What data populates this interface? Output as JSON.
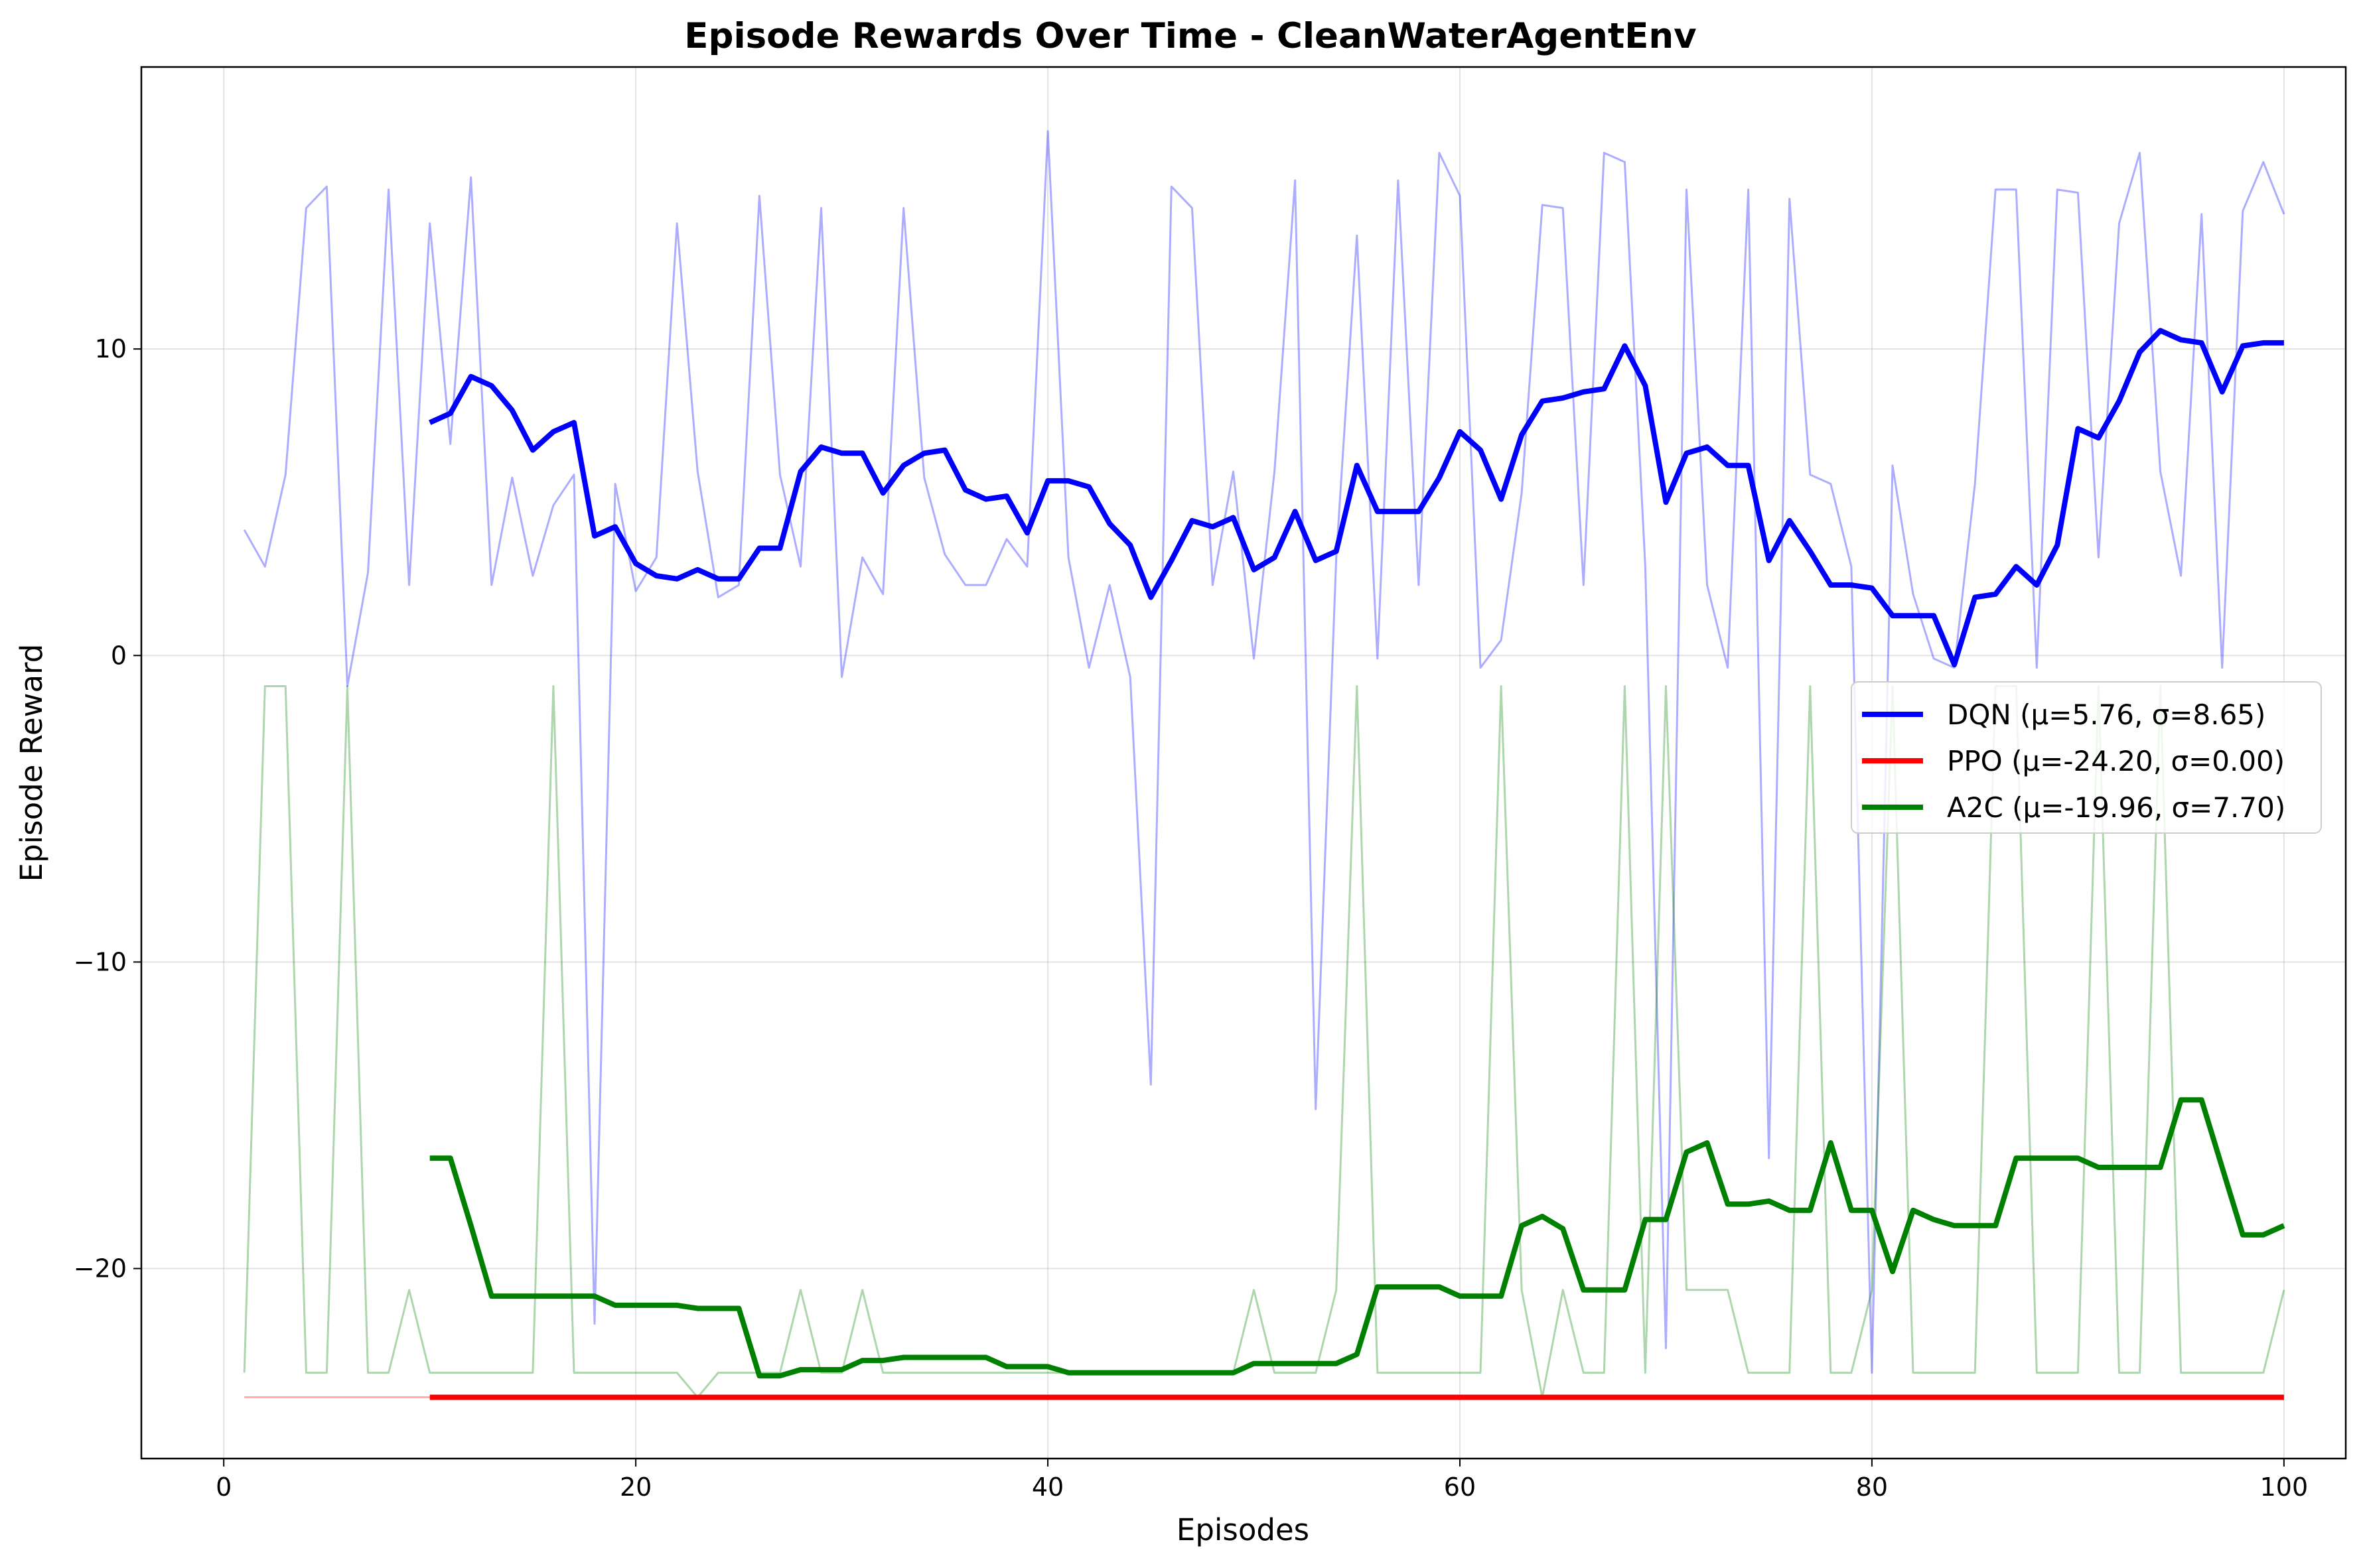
{
  "chart_data": {
    "type": "line",
    "title": "Episode Rewards Over Time - CleanWaterAgentEnv",
    "xlabel": "Episodes",
    "ylabel": "Episode Reward",
    "xlim": [
      -4,
      103
    ],
    "ylim": [
      -26.2,
      19.2
    ],
    "xticks": [
      0,
      20,
      40,
      60,
      80,
      100
    ],
    "yticks": [
      -20,
      -10,
      0,
      10
    ],
    "xtick_labels": [
      "0",
      "20",
      "40",
      "60",
      "80",
      "100"
    ],
    "ytick_labels": [
      "−20",
      "−10",
      "0",
      "10"
    ],
    "grid": true,
    "legend_position": "center-right",
    "legend": [
      "DQN (μ=5.76, σ=8.65)",
      "PPO (μ=-24.20, σ=0.00)",
      "A2C (μ=-19.96, σ=7.70)"
    ],
    "series": [
      {
        "name": "DQN (μ=5.76, σ=8.65)",
        "color": "#0000ff",
        "raw": [
          4.1,
          2.9,
          5.9,
          14.6,
          15.3,
          -1.0,
          2.7,
          15.2,
          2.3,
          14.1,
          6.9,
          15.6,
          2.3,
          5.8,
          2.6,
          4.9,
          5.9,
          -21.8,
          5.6,
          2.1,
          3.2,
          14.1,
          6.0,
          1.9,
          2.3,
          15.0,
          5.9,
          2.9,
          14.6,
          -0.7,
          3.2,
          2.0,
          14.6,
          5.8,
          3.3,
          2.3,
          2.3,
          3.8,
          2.9,
          17.1,
          3.2,
          -0.4,
          2.3,
          -0.7,
          -14.0,
          15.3,
          14.6,
          2.3,
          6.0,
          -0.1,
          6.0,
          15.5,
          -14.8,
          3.2,
          13.7,
          -0.1,
          15.5,
          2.3,
          16.4,
          15.0,
          -0.4,
          0.5,
          5.3,
          14.7,
          14.6,
          2.3,
          16.4,
          16.1,
          2.9,
          -22.6,
          15.2,
          2.3,
          -0.4,
          15.2,
          -16.4,
          14.9,
          5.9,
          5.6,
          2.9,
          -23.4,
          6.2,
          2.0,
          -0.1,
          -0.4,
          5.6,
          15.2,
          15.2,
          -0.4,
          15.2,
          15.1,
          3.2,
          14.1,
          16.4,
          6.0,
          2.6,
          14.4,
          -0.4,
          14.5,
          16.1,
          14.4
        ],
        "moving_avg_x": [
          10,
          11,
          12,
          13,
          14,
          15,
          16,
          17,
          18,
          19,
          20,
          21,
          22,
          23,
          24,
          25,
          26,
          27,
          28,
          29,
          30,
          31,
          32,
          33,
          34,
          35,
          36,
          37,
          38,
          39,
          40,
          41,
          42,
          43,
          44,
          45,
          46,
          47,
          48,
          49,
          50,
          51,
          52,
          53,
          54,
          55,
          56,
          57,
          58,
          59,
          60,
          61,
          62,
          63,
          64,
          65,
          66,
          67,
          68,
          69,
          70,
          71,
          72,
          73,
          74,
          75,
          76,
          77,
          78,
          79,
          80,
          81,
          82,
          83,
          84,
          85,
          86,
          87,
          88,
          89,
          90,
          91,
          92,
          93,
          94,
          95,
          96,
          97,
          98,
          99,
          100
        ],
        "moving_avg": [
          7.6,
          7.9,
          9.1,
          8.8,
          8.0,
          6.7,
          7.3,
          7.6,
          3.9,
          4.2,
          3.0,
          2.6,
          2.5,
          2.8,
          2.5,
          2.5,
          3.5,
          3.5,
          6.0,
          6.8,
          6.6,
          6.6,
          5.3,
          6.2,
          6.6,
          6.7,
          5.4,
          5.1,
          5.2,
          4.0,
          5.7,
          5.7,
          5.5,
          4.3,
          3.6,
          1.9,
          3.1,
          4.4,
          4.2,
          4.5,
          2.8,
          3.2,
          4.7,
          3.1,
          3.4,
          6.2,
          4.7,
          4.7,
          4.7,
          5.8,
          7.3,
          6.7,
          5.1,
          7.2,
          8.3,
          8.4,
          8.6,
          8.7,
          10.1,
          8.8,
          5.0,
          6.6,
          6.8,
          6.2,
          6.2,
          3.1,
          4.4,
          3.4,
          2.3,
          2.3,
          2.2,
          1.3,
          1.3,
          1.3,
          -0.3,
          1.9,
          2.0,
          2.9,
          2.3,
          3.6,
          7.4,
          7.1,
          8.3,
          9.9,
          10.6,
          10.3,
          10.2,
          8.6,
          10.1,
          10.2,
          10.2
        ]
      },
      {
        "name": "PPO (μ=-24.20, σ=0.00)",
        "color": "#ff0000",
        "raw": [
          -24.2,
          -24.2,
          -24.2,
          -24.2,
          -24.2,
          -24.2,
          -24.2,
          -24.2,
          -24.2,
          -24.2,
          -24.2,
          -24.2,
          -24.2,
          -24.2,
          -24.2,
          -24.2,
          -24.2,
          -24.2,
          -24.2,
          -24.2,
          -24.2,
          -24.2,
          -24.2,
          -24.2,
          -24.2,
          -24.2,
          -24.2,
          -24.2,
          -24.2,
          -24.2,
          -24.2,
          -24.2,
          -24.2,
          -24.2,
          -24.2,
          -24.2,
          -24.2,
          -24.2,
          -24.2,
          -24.2,
          -24.2,
          -24.2,
          -24.2,
          -24.2,
          -24.2,
          -24.2,
          -24.2,
          -24.2,
          -24.2,
          -24.2,
          -24.2,
          -24.2,
          -24.2,
          -24.2,
          -24.2,
          -24.2,
          -24.2,
          -24.2,
          -24.2,
          -24.2,
          -24.2,
          -24.2,
          -24.2,
          -24.2,
          -24.2,
          -24.2,
          -24.2,
          -24.2,
          -24.2,
          -24.2,
          -24.2,
          -24.2,
          -24.2,
          -24.2,
          -24.2,
          -24.2,
          -24.2,
          -24.2,
          -24.2,
          -24.2,
          -24.2,
          -24.2,
          -24.2,
          -24.2,
          -24.2,
          -24.2,
          -24.2,
          -24.2,
          -24.2,
          -24.2,
          -24.2,
          -24.2,
          -24.2,
          -24.2,
          -24.2,
          -24.2,
          -24.2,
          -24.2,
          -24.2,
          -24.2
        ],
        "moving_avg_x": [
          10,
          100
        ],
        "moving_avg": [
          -24.2,
          -24.2
        ]
      },
      {
        "name": "A2C (μ=-19.96, σ=7.70)",
        "color": "#008000",
        "raw": [
          -23.4,
          -1.0,
          -1.0,
          -23.4,
          -23.4,
          -1.0,
          -23.4,
          -23.4,
          -20.7,
          -23.4,
          -23.4,
          -23.4,
          -23.4,
          -23.4,
          -23.4,
          -1.0,
          -23.4,
          -23.4,
          -23.4,
          -23.4,
          -23.4,
          -23.4,
          -24.2,
          -23.4,
          -23.4,
          -23.4,
          -23.4,
          -20.7,
          -23.4,
          -23.4,
          -20.7,
          -23.4,
          -23.4,
          -23.4,
          -23.4,
          -23.4,
          -23.4,
          -23.4,
          -23.4,
          -23.4,
          -23.4,
          -23.4,
          -23.4,
          -23.4,
          -23.4,
          -23.4,
          -23.4,
          -23.4,
          -23.4,
          -20.7,
          -23.4,
          -23.4,
          -23.4,
          -20.7,
          -1.0,
          -23.4,
          -23.4,
          -23.4,
          -23.4,
          -23.4,
          -23.4,
          -1.0,
          -20.7,
          -24.2,
          -20.7,
          -23.4,
          -23.4,
          -1.0,
          -23.4,
          -1.0,
          -20.7,
          -20.7,
          -20.7,
          -23.4,
          -23.4,
          -23.4,
          -1.0,
          -23.4,
          -23.4,
          -20.7,
          -1.0,
          -23.4,
          -23.4,
          -23.4,
          -23.4,
          -1.0,
          -1.0,
          -23.4,
          -23.4,
          -23.4,
          -1.0,
          -23.4,
          -23.4,
          -1.0,
          -23.4,
          -23.4,
          -23.4,
          -23.4,
          -23.4,
          -20.7
        ],
        "moving_avg_x": [
          10,
          11,
          12,
          13,
          14,
          15,
          16,
          17,
          18,
          19,
          20,
          21,
          22,
          23,
          24,
          25,
          26,
          27,
          28,
          29,
          30,
          31,
          32,
          33,
          34,
          35,
          36,
          37,
          38,
          39,
          40,
          41,
          42,
          43,
          44,
          45,
          46,
          47,
          48,
          49,
          50,
          51,
          52,
          53,
          54,
          55,
          56,
          57,
          58,
          59,
          60,
          61,
          62,
          63,
          64,
          65,
          66,
          67,
          68,
          69,
          70,
          71,
          72,
          73,
          74,
          75,
          76,
          77,
          78,
          79,
          80,
          81,
          82,
          83,
          84,
          85,
          86,
          87,
          88,
          89,
          90,
          91,
          92,
          93,
          94,
          95,
          96,
          97,
          98,
          99,
          100
        ],
        "moving_avg": [
          -16.4,
          -16.4,
          -18.6,
          -20.9,
          -20.9,
          -20.9,
          -20.9,
          -20.9,
          -20.9,
          -21.2,
          -21.2,
          -21.2,
          -21.2,
          -21.3,
          -21.3,
          -21.3,
          -23.5,
          -23.5,
          -23.3,
          -23.3,
          -23.3,
          -23.0,
          -23.0,
          -22.9,
          -22.9,
          -22.9,
          -22.9,
          -22.9,
          -23.2,
          -23.2,
          -23.2,
          -23.4,
          -23.4,
          -23.4,
          -23.4,
          -23.4,
          -23.4,
          -23.4,
          -23.4,
          -23.4,
          -23.1,
          -23.1,
          -23.1,
          -23.1,
          -23.1,
          -22.8,
          -20.6,
          -20.6,
          -20.6,
          -20.6,
          -20.9,
          -20.9,
          -20.9,
          -18.6,
          -18.3,
          -18.7,
          -20.7,
          -20.7,
          -20.7,
          -18.4,
          -18.4,
          -16.2,
          -15.9,
          -17.9,
          -17.9,
          -17.8,
          -18.1,
          -18.1,
          -15.9,
          -18.1,
          -18.1,
          -20.1,
          -18.1,
          -18.4,
          -18.6,
          -18.6,
          -18.6,
          -16.4,
          -16.4,
          -16.4,
          -16.4,
          -16.7,
          -16.7,
          -16.7,
          -16.7,
          -14.5,
          -14.5,
          -16.7,
          -18.9,
          -18.9,
          -18.6
        ]
      }
    ]
  }
}
